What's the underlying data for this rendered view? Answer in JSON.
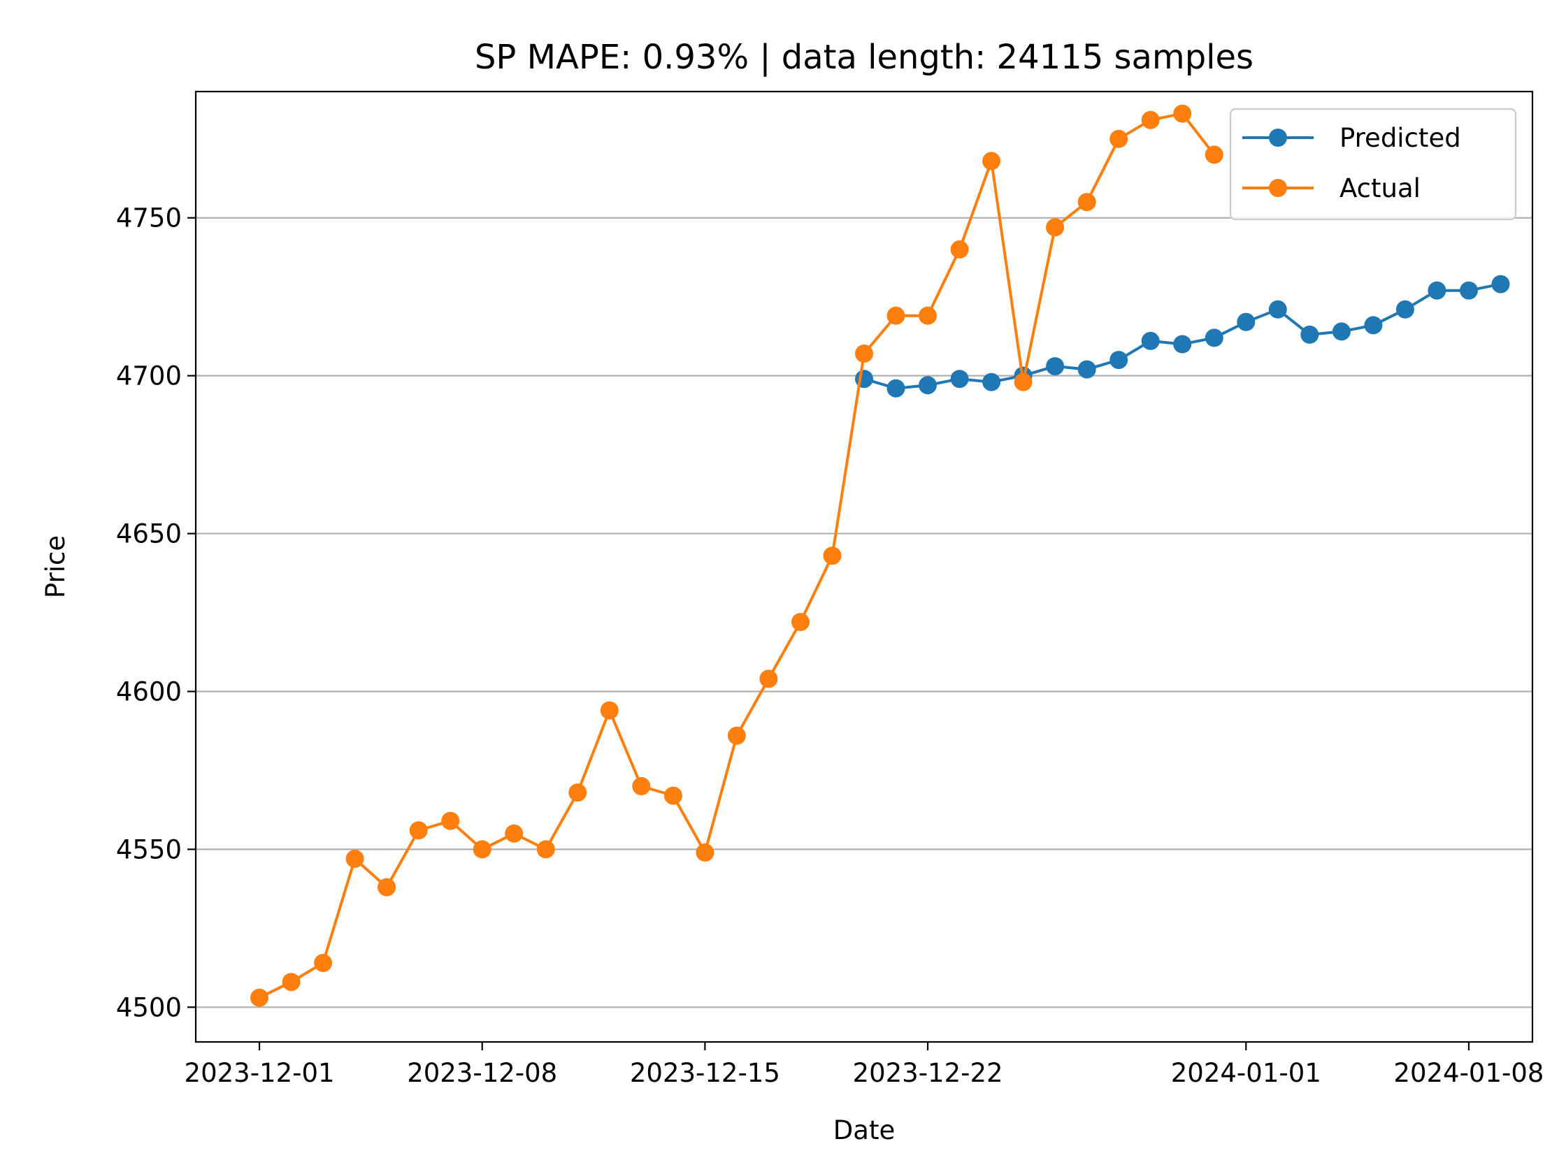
{
  "chart_data": {
    "type": "line",
    "title": "SP MAPE: 0.93% | data length: 24115 samples",
    "xlabel": "Date",
    "ylabel": "Price",
    "xlim": [
      "2023-11-29",
      "2024-01-10"
    ],
    "ylim": [
      4489,
      4790
    ],
    "grid": "y-major",
    "legend": "top-right",
    "x_ticks": [
      "2023-12-01",
      "2023-12-08",
      "2023-12-15",
      "2023-12-22",
      "2024-01-01",
      "2024-01-08"
    ],
    "y_ticks": [
      4500,
      4550,
      4600,
      4650,
      4700,
      4750
    ],
    "series": [
      {
        "name": "Predicted",
        "color": "#1f77b4",
        "points": [
          {
            "x": "2023-12-20",
            "y": 4699
          },
          {
            "x": "2023-12-21",
            "y": 4696
          },
          {
            "x": "2023-12-22",
            "y": 4697
          },
          {
            "x": "2023-12-23",
            "y": 4699
          },
          {
            "x": "2023-12-24",
            "y": 4698
          },
          {
            "x": "2023-12-25",
            "y": 4700
          },
          {
            "x": "2023-12-26",
            "y": 4703
          },
          {
            "x": "2023-12-27",
            "y": 4702
          },
          {
            "x": "2023-12-28",
            "y": 4705
          },
          {
            "x": "2023-12-29",
            "y": 4711
          },
          {
            "x": "2023-12-30",
            "y": 4710
          },
          {
            "x": "2023-12-31",
            "y": 4712
          },
          {
            "x": "2024-01-01",
            "y": 4717
          },
          {
            "x": "2024-01-02",
            "y": 4721
          },
          {
            "x": "2024-01-03",
            "y": 4713
          },
          {
            "x": "2024-01-04",
            "y": 4714
          },
          {
            "x": "2024-01-05",
            "y": 4716
          },
          {
            "x": "2024-01-06",
            "y": 4721
          },
          {
            "x": "2024-01-07",
            "y": 4727
          },
          {
            "x": "2024-01-08",
            "y": 4727
          },
          {
            "x": "2024-01-09",
            "y": 4729
          }
        ]
      },
      {
        "name": "Actual",
        "color": "#ff7f0e",
        "points": [
          {
            "x": "2023-12-01",
            "y": 4503
          },
          {
            "x": "2023-12-02",
            "y": 4508
          },
          {
            "x": "2023-12-03",
            "y": 4514
          },
          {
            "x": "2023-12-04",
            "y": 4547
          },
          {
            "x": "2023-12-05",
            "y": 4538
          },
          {
            "x": "2023-12-06",
            "y": 4556
          },
          {
            "x": "2023-12-07",
            "y": 4559
          },
          {
            "x": "2023-12-08",
            "y": 4550
          },
          {
            "x": "2023-12-09",
            "y": 4555
          },
          {
            "x": "2023-12-10",
            "y": 4550
          },
          {
            "x": "2023-12-11",
            "y": 4568
          },
          {
            "x": "2023-12-12",
            "y": 4594
          },
          {
            "x": "2023-12-13",
            "y": 4570
          },
          {
            "x": "2023-12-14",
            "y": 4567
          },
          {
            "x": "2023-12-15",
            "y": 4549
          },
          {
            "x": "2023-12-16",
            "y": 4586
          },
          {
            "x": "2023-12-17",
            "y": 4604
          },
          {
            "x": "2023-12-18",
            "y": 4622
          },
          {
            "x": "2023-12-19",
            "y": 4643
          },
          {
            "x": "2023-12-20",
            "y": 4707
          },
          {
            "x": "2023-12-21",
            "y": 4719
          },
          {
            "x": "2023-12-22",
            "y": 4719
          },
          {
            "x": "2023-12-23",
            "y": 4740
          },
          {
            "x": "2023-12-24",
            "y": 4768
          },
          {
            "x": "2023-12-25",
            "y": 4698
          },
          {
            "x": "2023-12-26",
            "y": 4747
          },
          {
            "x": "2023-12-27",
            "y": 4755
          },
          {
            "x": "2023-12-28",
            "y": 4775
          },
          {
            "x": "2023-12-29",
            "y": 4781
          },
          {
            "x": "2023-12-30",
            "y": 4783
          },
          {
            "x": "2023-12-31",
            "y": 4770
          }
        ]
      }
    ]
  }
}
